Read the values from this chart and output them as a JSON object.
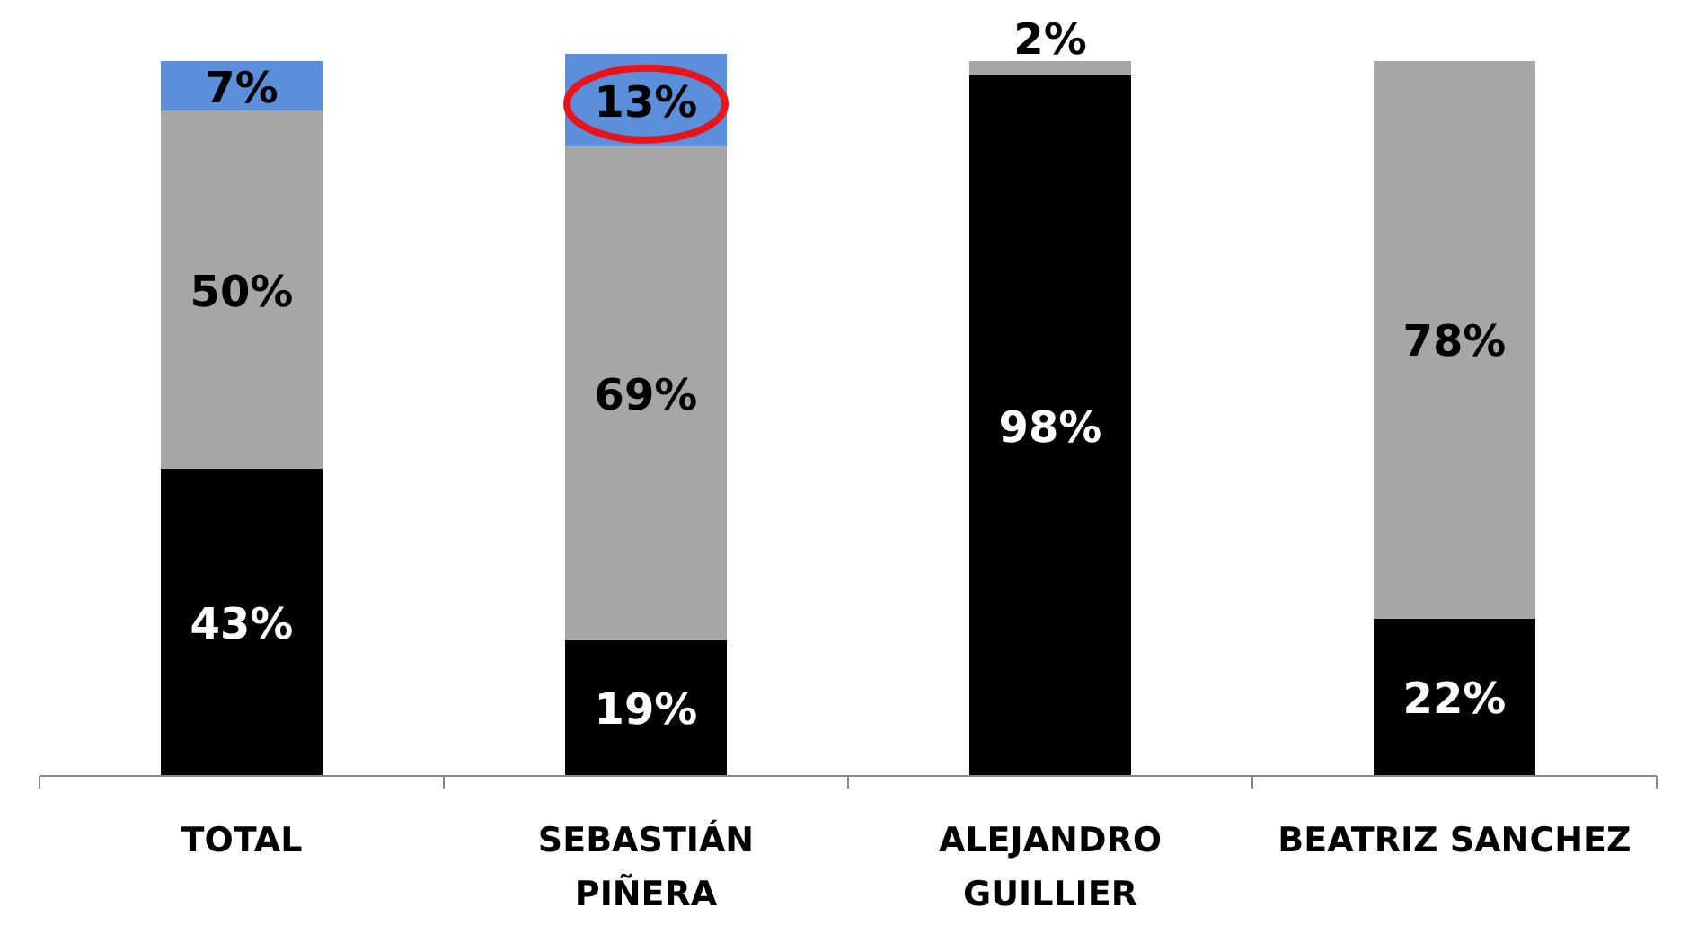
{
  "chart_data": {
    "type": "bar",
    "stacked": true,
    "categories": [
      "TOTAL",
      "SEBASTIÁN PIÑERA",
      "ALEJANDRO GUILLIER",
      "BEATRIZ SANCHEZ"
    ],
    "series": [
      {
        "color": "#000000",
        "values": [
          43,
          19,
          98,
          22
        ],
        "value_labels": [
          "43%",
          "19%",
          "98%",
          "22%"
        ]
      },
      {
        "color": "#a6a6a6",
        "values": [
          50,
          69,
          2,
          78
        ],
        "value_labels": [
          "50%",
          "69%",
          "2%",
          "78%"
        ]
      },
      {
        "color": "#5b8fd9",
        "values": [
          7,
          13,
          null,
          null
        ],
        "value_labels": [
          "7%",
          "13%",
          null,
          null
        ]
      }
    ]
  }
}
